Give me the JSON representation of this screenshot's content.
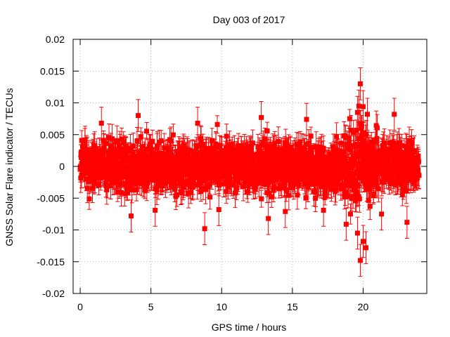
{
  "chart_data": {
    "type": "scatter",
    "title": "Day 003 of 2017",
    "xlabel": "GPS time / hours",
    "ylabel": "GNSS Solar Flare indicator / TECUs",
    "xlim": [
      -0.5,
      24.5
    ],
    "ylim": [
      -0.02,
      0.02
    ],
    "x_ticks": [
      0,
      5,
      10,
      15,
      20
    ],
    "x_tick_labels": [
      "0",
      "5",
      "10",
      "15",
      "20"
    ],
    "y_ticks": [
      -0.02,
      -0.015,
      -0.01,
      -0.005,
      0,
      0.005,
      0.01,
      0.015,
      0.02
    ],
    "y_tick_labels": [
      "-0.02",
      "-0.015",
      "-0.01",
      "-0.005",
      "0",
      "0.005",
      "0.01",
      "0.015",
      "0.02"
    ],
    "grid": true,
    "legend": "none",
    "series": [
      {
        "color": "#ff0000",
        "marker": "square",
        "error_bars": true,
        "x_range": [
          0,
          23.95
        ],
        "typical_spread": 0.0025,
        "typical_error": 0.0018,
        "notable_points": [
          {
            "x": 19.8,
            "y": 0.013
          },
          {
            "x": 19.7,
            "y": 0.0095
          },
          {
            "x": 20.0,
            "y": 0.0094
          },
          {
            "x": 19.6,
            "y": 0.0085
          },
          {
            "x": 20.3,
            "y": 0.0082
          },
          {
            "x": 22.2,
            "y": 0.0082
          },
          {
            "x": 4.1,
            "y": 0.008
          },
          {
            "x": 12.8,
            "y": 0.0077
          },
          {
            "x": 16.0,
            "y": 0.0074
          },
          {
            "x": 1.5,
            "y": 0.0068
          },
          {
            "x": 8.3,
            "y": 0.0068
          },
          {
            "x": 19.8,
            "y": -0.0148
          },
          {
            "x": 20.2,
            "y": -0.0128
          },
          {
            "x": 20.0,
            "y": -0.0118
          },
          {
            "x": 19.6,
            "y": -0.0105
          },
          {
            "x": 8.8,
            "y": -0.0098
          },
          {
            "x": 18.8,
            "y": -0.0091
          },
          {
            "x": 23.1,
            "y": -0.0088
          },
          {
            "x": 13.3,
            "y": -0.0082
          },
          {
            "x": 3.6,
            "y": -0.0078
          },
          {
            "x": 5.3,
            "y": -0.0069
          },
          {
            "x": 9.8,
            "y": -0.0068
          },
          {
            "x": 14.5,
            "y": -0.0071
          },
          {
            "x": 17.2,
            "y": -0.0069
          },
          {
            "x": 21.3,
            "y": -0.0075
          }
        ]
      }
    ]
  }
}
